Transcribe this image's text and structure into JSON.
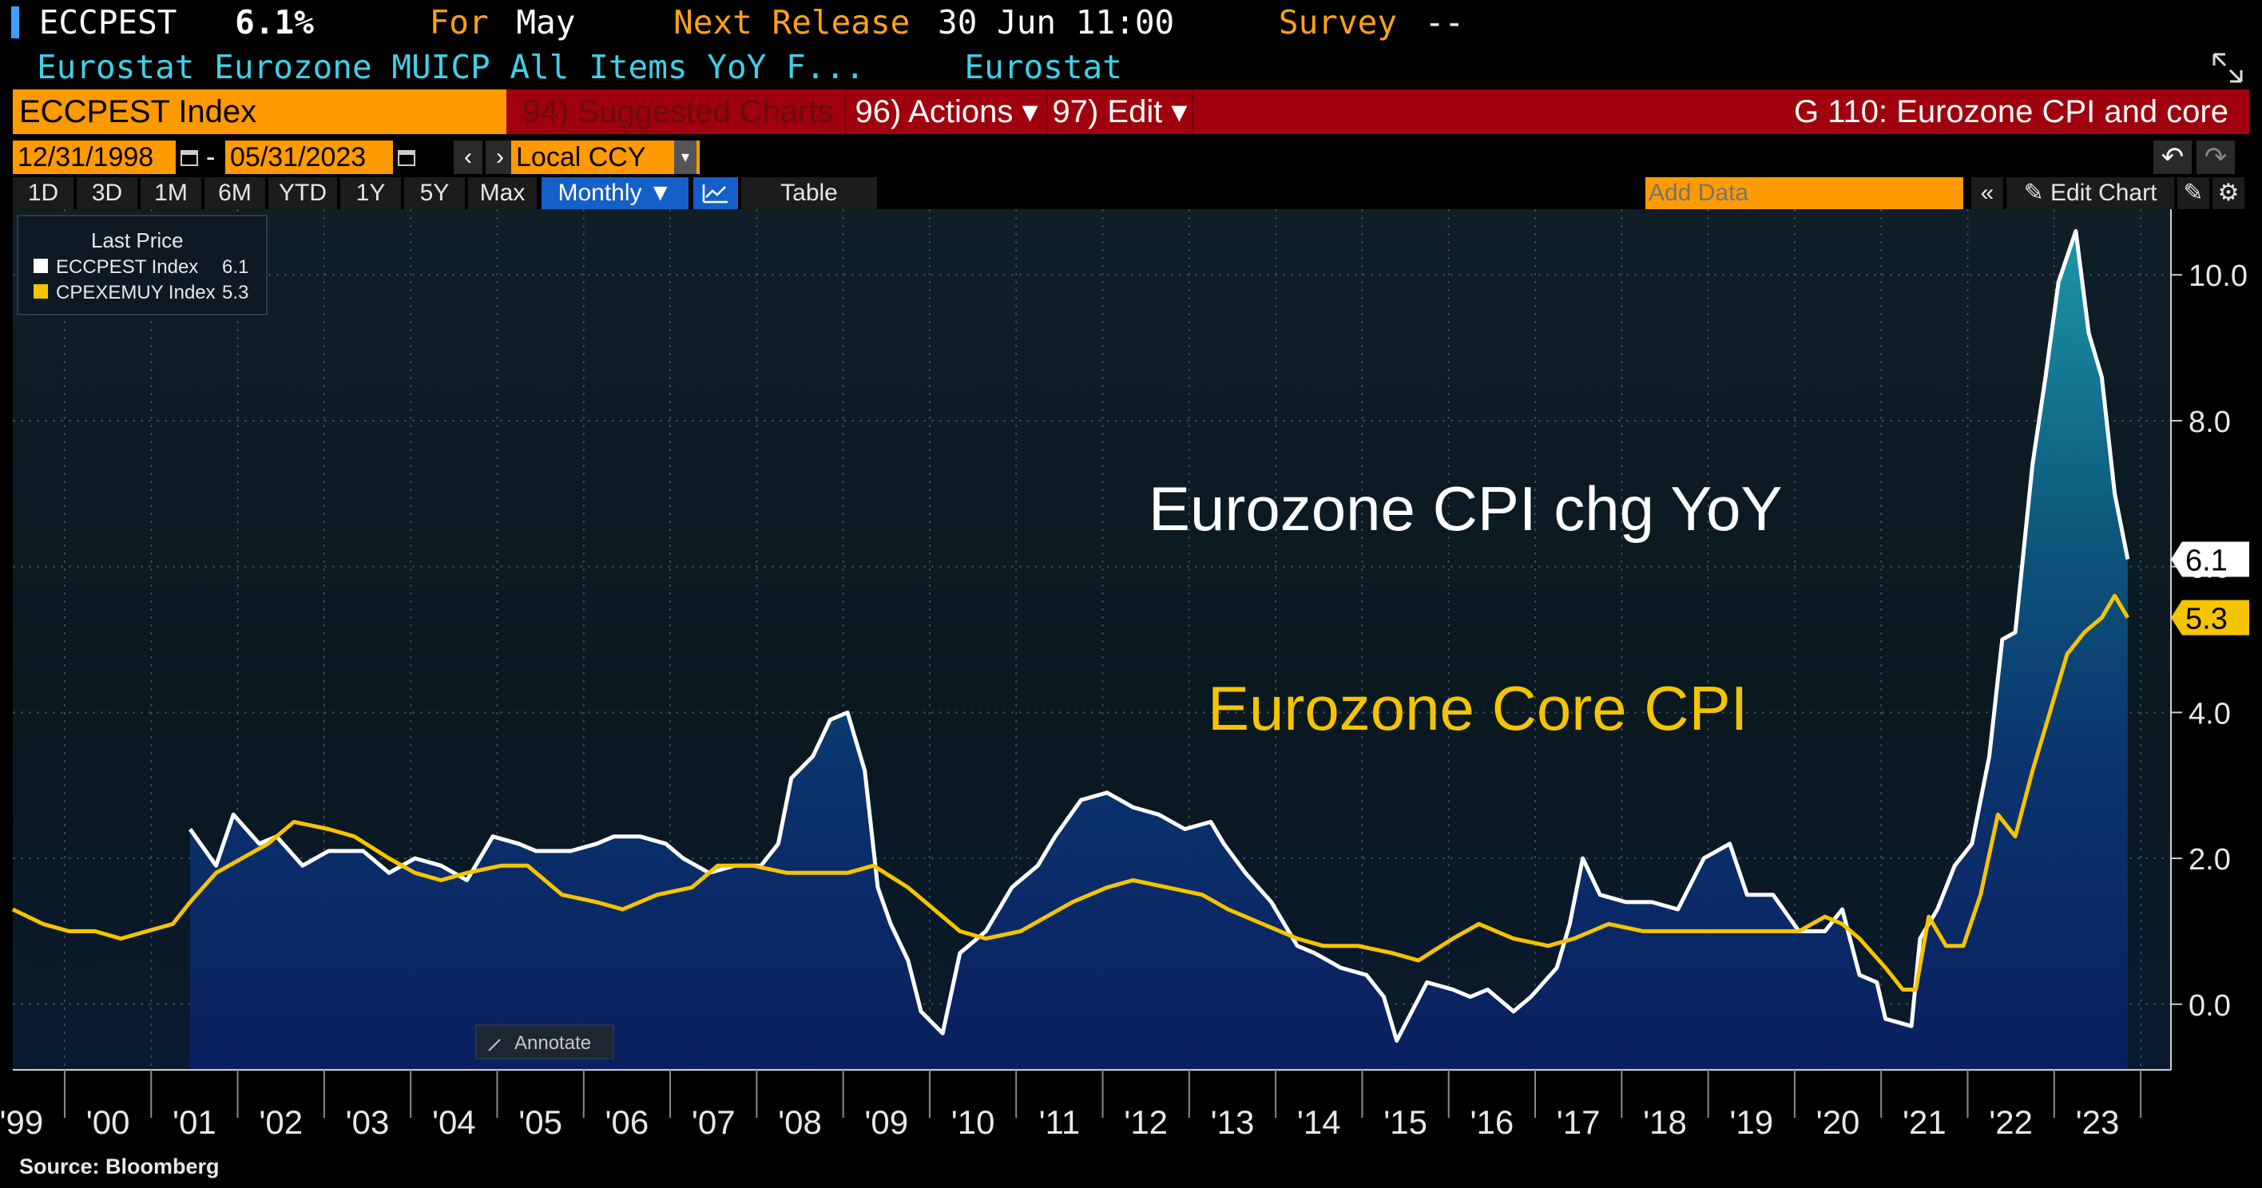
{
  "header": {
    "ticker": "ECCPEST",
    "value": "6.1%",
    "for_label": "For",
    "for_value": "May",
    "next_release_label": "Next Release",
    "next_release_value": "30 Jun 11:00",
    "survey_label": "Survey",
    "survey_value": "--",
    "description": "Eurostat Eurozone MUICP All Items YoY F...",
    "source_name": "Eurostat"
  },
  "toolbar": {
    "security": "ECCPEST Index",
    "suggested": "94) Suggested Charts",
    "actions": "96) Actions ▾",
    "edit": "97) Edit ▾",
    "graph_title": "G 110: Eurozone CPI and core"
  },
  "controls": {
    "start_date": "12/31/1998",
    "end_date": "05/31/2023",
    "currency": "Local CCY",
    "ranges": [
      "1D",
      "3D",
      "1M",
      "6M",
      "YTD",
      "1Y",
      "5Y",
      "Max"
    ],
    "frequency": "Monthly ▼",
    "table": "Table",
    "add_data_placeholder": "Add Data",
    "edit_chart": "Edit Chart",
    "annotate": "Annotate"
  },
  "legend": {
    "title": "Last Price",
    "items": [
      {
        "label": "ECCPEST Index",
        "value": "6.1",
        "color": "#ffffff"
      },
      {
        "label": "CPEXEMUY Index",
        "value": "5.3",
        "color": "#f5c400"
      }
    ]
  },
  "colors": {
    "headline": "#ffffff",
    "core": "#f5c400",
    "accent": "#ffa11a",
    "bar": "#a0000d"
  },
  "footer": {
    "source": "Source: Bloomberg"
  },
  "chart_data": {
    "type": "line",
    "title": "G 110: Eurozone CPI and core",
    "annotations": [
      {
        "text": "Eurozone CPI chg YoY",
        "color": "#ffffff"
      },
      {
        "text": "Eurozone Core CPI",
        "color": "#f5c400"
      }
    ],
    "x_ticks": [
      "'99",
      "'00",
      "'01",
      "'02",
      "'03",
      "'04",
      "'05",
      "'06",
      "'07",
      "'08",
      "'09",
      "'10",
      "'11",
      "'12",
      "'13",
      "'14",
      "'15",
      "'16",
      "'17",
      "'18",
      "'19",
      "'20",
      "'21",
      "'22",
      "'23"
    ],
    "y_ticks": [
      "0.0",
      "2.0",
      "4.0",
      "6.0",
      "8.0",
      "10.0"
    ],
    "ylim": [
      -0.9,
      10.9
    ],
    "xlim": [
      1998.95,
      2023.9
    ],
    "series": [
      {
        "name": "ECCPEST Index",
        "label": "6.1",
        "color": "#ffffff",
        "x": [
          2001.0,
          2001.3,
          2001.5,
          2001.8,
          2002.0,
          2002.3,
          2002.6,
          2003.0,
          2003.3,
          2003.6,
          2003.9,
          2004.2,
          2004.5,
          2004.8,
          2005.0,
          2005.4,
          2005.7,
          2005.9,
          2006.2,
          2006.5,
          2006.7,
          2007.0,
          2007.3,
          2007.6,
          2007.8,
          2007.95,
          2008.2,
          2008.4,
          2008.6,
          2008.8,
          2008.95,
          2009.1,
          2009.3,
          2009.45,
          2009.7,
          2009.9,
          2010.2,
          2010.5,
          2010.8,
          2011.0,
          2011.3,
          2011.6,
          2011.9,
          2012.2,
          2012.5,
          2012.8,
          2012.95,
          2013.2,
          2013.5,
          2013.8,
          2014.0,
          2014.3,
          2014.6,
          2014.8,
          2014.95,
          2015.3,
          2015.6,
          2015.8,
          2016.0,
          2016.3,
          2016.5,
          2016.8,
          2016.95,
          2017.1,
          2017.3,
          2017.6,
          2017.9,
          2018.2,
          2018.5,
          2018.8,
          2019.0,
          2019.3,
          2019.6,
          2019.9,
          2020.1,
          2020.3,
          2020.5,
          2020.6,
          2020.9,
          2021.0,
          2021.2,
          2021.4,
          2021.6,
          2021.8,
          2021.95,
          2022.1,
          2022.3,
          2022.45,
          2022.6,
          2022.8,
          2022.95,
          2023.1,
          2023.25,
          2023.4
        ],
        "values": [
          2.4,
          1.9,
          2.6,
          2.2,
          2.3,
          1.9,
          2.1,
          2.1,
          1.8,
          2.0,
          1.9,
          1.7,
          2.3,
          2.2,
          2.1,
          2.1,
          2.2,
          2.3,
          2.3,
          2.2,
          2.0,
          1.8,
          1.9,
          1.9,
          2.2,
          3.1,
          3.4,
          3.9,
          4.0,
          3.2,
          1.6,
          1.1,
          0.6,
          -0.1,
          -0.4,
          0.7,
          1.0,
          1.6,
          1.9,
          2.3,
          2.8,
          2.9,
          2.7,
          2.6,
          2.4,
          2.5,
          2.2,
          1.8,
          1.4,
          0.8,
          0.7,
          0.5,
          0.4,
          0.1,
          -0.5,
          0.3,
          0.2,
          0.1,
          0.2,
          -0.1,
          0.1,
          0.5,
          1.1,
          2.0,
          1.5,
          1.4,
          1.4,
          1.3,
          2.0,
          2.2,
          1.5,
          1.5,
          1.0,
          1.0,
          1.3,
          0.4,
          0.3,
          -0.2,
          -0.3,
          0.9,
          1.3,
          1.9,
          2.2,
          3.4,
          5.0,
          5.1,
          7.4,
          8.6,
          9.9,
          10.6,
          9.2,
          8.6,
          7.0,
          6.1
        ]
      },
      {
        "name": "CPEXEMUY Index",
        "label": "5.3",
        "color": "#f5c400",
        "x": [
          1998.95,
          1999.3,
          1999.6,
          1999.9,
          2000.2,
          2000.5,
          2000.8,
          2001.0,
          2001.3,
          2001.6,
          2001.9,
          2002.2,
          2002.6,
          2002.9,
          2003.3,
          2003.6,
          2003.9,
          2004.2,
          2004.6,
          2004.9,
          2005.3,
          2005.7,
          2006.0,
          2006.4,
          2006.8,
          2007.1,
          2007.5,
          2007.9,
          2008.2,
          2008.6,
          2008.9,
          2009.3,
          2009.6,
          2009.9,
          2010.2,
          2010.6,
          2010.9,
          2011.2,
          2011.6,
          2011.9,
          2012.3,
          2012.7,
          2013.0,
          2013.4,
          2013.8,
          2014.1,
          2014.5,
          2014.9,
          2015.2,
          2015.6,
          2015.9,
          2016.3,
          2016.7,
          2017.0,
          2017.4,
          2017.8,
          2018.1,
          2018.5,
          2018.9,
          2019.2,
          2019.6,
          2019.9,
          2020.1,
          2020.3,
          2020.6,
          2020.8,
          2020.95,
          2021.1,
          2021.3,
          2021.5,
          2021.7,
          2021.9,
          2022.1,
          2022.3,
          2022.5,
          2022.7,
          2022.9,
          2023.1,
          2023.25,
          2023.4
        ],
        "values": [
          1.3,
          1.1,
          1.0,
          1.0,
          0.9,
          1.0,
          1.1,
          1.4,
          1.8,
          2.0,
          2.2,
          2.5,
          2.4,
          2.3,
          2.0,
          1.8,
          1.7,
          1.8,
          1.9,
          1.9,
          1.5,
          1.4,
          1.3,
          1.5,
          1.6,
          1.9,
          1.9,
          1.8,
          1.8,
          1.8,
          1.9,
          1.6,
          1.3,
          1.0,
          0.9,
          1.0,
          1.2,
          1.4,
          1.6,
          1.7,
          1.6,
          1.5,
          1.3,
          1.1,
          0.9,
          0.8,
          0.8,
          0.7,
          0.6,
          0.9,
          1.1,
          0.9,
          0.8,
          0.9,
          1.1,
          1.0,
          1.0,
          1.0,
          1.0,
          1.0,
          1.0,
          1.2,
          1.1,
          0.9,
          0.5,
          0.2,
          0.2,
          1.2,
          0.8,
          0.8,
          1.5,
          2.6,
          2.3,
          3.2,
          4.0,
          4.8,
          5.1,
          5.3,
          5.6,
          5.3
        ]
      }
    ]
  }
}
